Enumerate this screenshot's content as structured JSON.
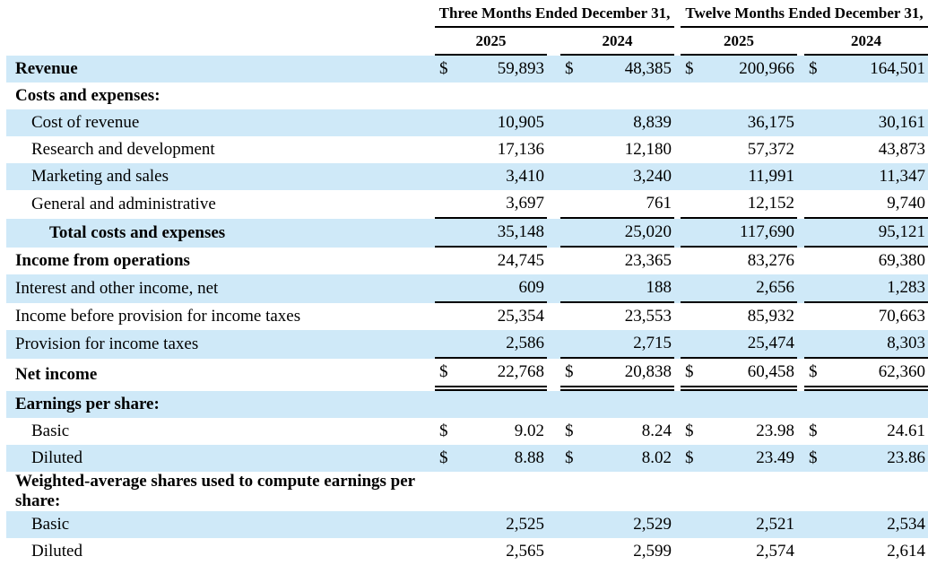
{
  "document": {
    "kind": "income-statement-table",
    "currency_symbol": "$",
    "colors": {
      "row_shade": "#cfe9f8",
      "rule": "#000000",
      "text": "#000000",
      "background": "#ffffff"
    }
  },
  "header": {
    "groups": [
      {
        "label": "Three Months Ended December 31,",
        "years": [
          "2025",
          "2024"
        ]
      },
      {
        "label": "Twelve Months Ended December 31,",
        "years": [
          "2025",
          "2024"
        ]
      }
    ]
  },
  "rows": [
    {
      "label": "Revenue",
      "bold": true,
      "indent": 0,
      "shade": true,
      "dollar": true,
      "rule": "",
      "values": [
        "59,893",
        "48,385",
        "200,966",
        "164,501"
      ]
    },
    {
      "label": "Costs and expenses:",
      "bold": true,
      "indent": 0,
      "shade": false,
      "dollar": false,
      "rule": "",
      "values": [
        "",
        "",
        "",
        ""
      ]
    },
    {
      "label": "Cost of revenue",
      "bold": false,
      "indent": 1,
      "shade": true,
      "dollar": false,
      "rule": "",
      "values": [
        "10,905",
        "8,839",
        "36,175",
        "30,161"
      ]
    },
    {
      "label": "Research and development",
      "bold": false,
      "indent": 1,
      "shade": false,
      "dollar": false,
      "rule": "",
      "values": [
        "17,136",
        "12,180",
        "57,372",
        "43,873"
      ]
    },
    {
      "label": "Marketing and sales",
      "bold": false,
      "indent": 1,
      "shade": true,
      "dollar": false,
      "rule": "",
      "values": [
        "3,410",
        "3,240",
        "11,991",
        "11,347"
      ]
    },
    {
      "label": "General and administrative",
      "bold": false,
      "indent": 1,
      "shade": false,
      "dollar": false,
      "rule": "single",
      "values": [
        "3,697",
        "761",
        "12,152",
        "9,740"
      ]
    },
    {
      "label": "Total costs and expenses",
      "bold": true,
      "indent": 2,
      "shade": true,
      "dollar": false,
      "rule": "single",
      "values": [
        "35,148",
        "25,020",
        "117,690",
        "95,121"
      ]
    },
    {
      "label": "Income from operations",
      "bold": true,
      "indent": 0,
      "shade": false,
      "dollar": false,
      "rule": "",
      "values": [
        "24,745",
        "23,365",
        "83,276",
        "69,380"
      ]
    },
    {
      "label": "Interest and other income, net",
      "bold": false,
      "indent": 0,
      "shade": true,
      "dollar": false,
      "rule": "single",
      "values": [
        "609",
        "188",
        "2,656",
        "1,283"
      ]
    },
    {
      "label": "Income before provision for income taxes",
      "bold": false,
      "indent": 0,
      "shade": false,
      "dollar": false,
      "rule": "",
      "values": [
        "25,354",
        "23,553",
        "85,932",
        "70,663"
      ]
    },
    {
      "label": "Provision for income taxes",
      "bold": false,
      "indent": 0,
      "shade": true,
      "dollar": false,
      "rule": "single",
      "values": [
        "2,586",
        "2,715",
        "25,474",
        "8,303"
      ]
    },
    {
      "label": "Net income",
      "bold": true,
      "indent": 0,
      "shade": false,
      "dollar": true,
      "rule": "double",
      "values": [
        "22,768",
        "20,838",
        "60,458",
        "62,360"
      ]
    },
    {
      "label": "Earnings per share:",
      "bold": true,
      "indent": 0,
      "shade": true,
      "dollar": false,
      "rule": "",
      "values": [
        "",
        "",
        "",
        ""
      ]
    },
    {
      "label": "Basic",
      "bold": false,
      "indent": 1,
      "shade": false,
      "dollar": true,
      "rule": "",
      "values": [
        "9.02",
        "8.24",
        "23.98",
        "24.61"
      ]
    },
    {
      "label": "Diluted",
      "bold": false,
      "indent": 1,
      "shade": true,
      "dollar": true,
      "rule": "",
      "values": [
        "8.88",
        "8.02",
        "23.49",
        "23.86"
      ]
    },
    {
      "label": "Weighted-average shares used to compute earnings per share:",
      "bold": true,
      "indent": 0,
      "shade": false,
      "dollar": false,
      "rule": "",
      "values": [
        "",
        "",
        "",
        ""
      ]
    },
    {
      "label": "Basic",
      "bold": false,
      "indent": 1,
      "shade": true,
      "dollar": false,
      "rule": "",
      "values": [
        "2,525",
        "2,529",
        "2,521",
        "2,534"
      ]
    },
    {
      "label": "Diluted",
      "bold": false,
      "indent": 1,
      "shade": false,
      "dollar": false,
      "rule": "",
      "values": [
        "2,565",
        "2,599",
        "2,574",
        "2,614"
      ]
    }
  ]
}
